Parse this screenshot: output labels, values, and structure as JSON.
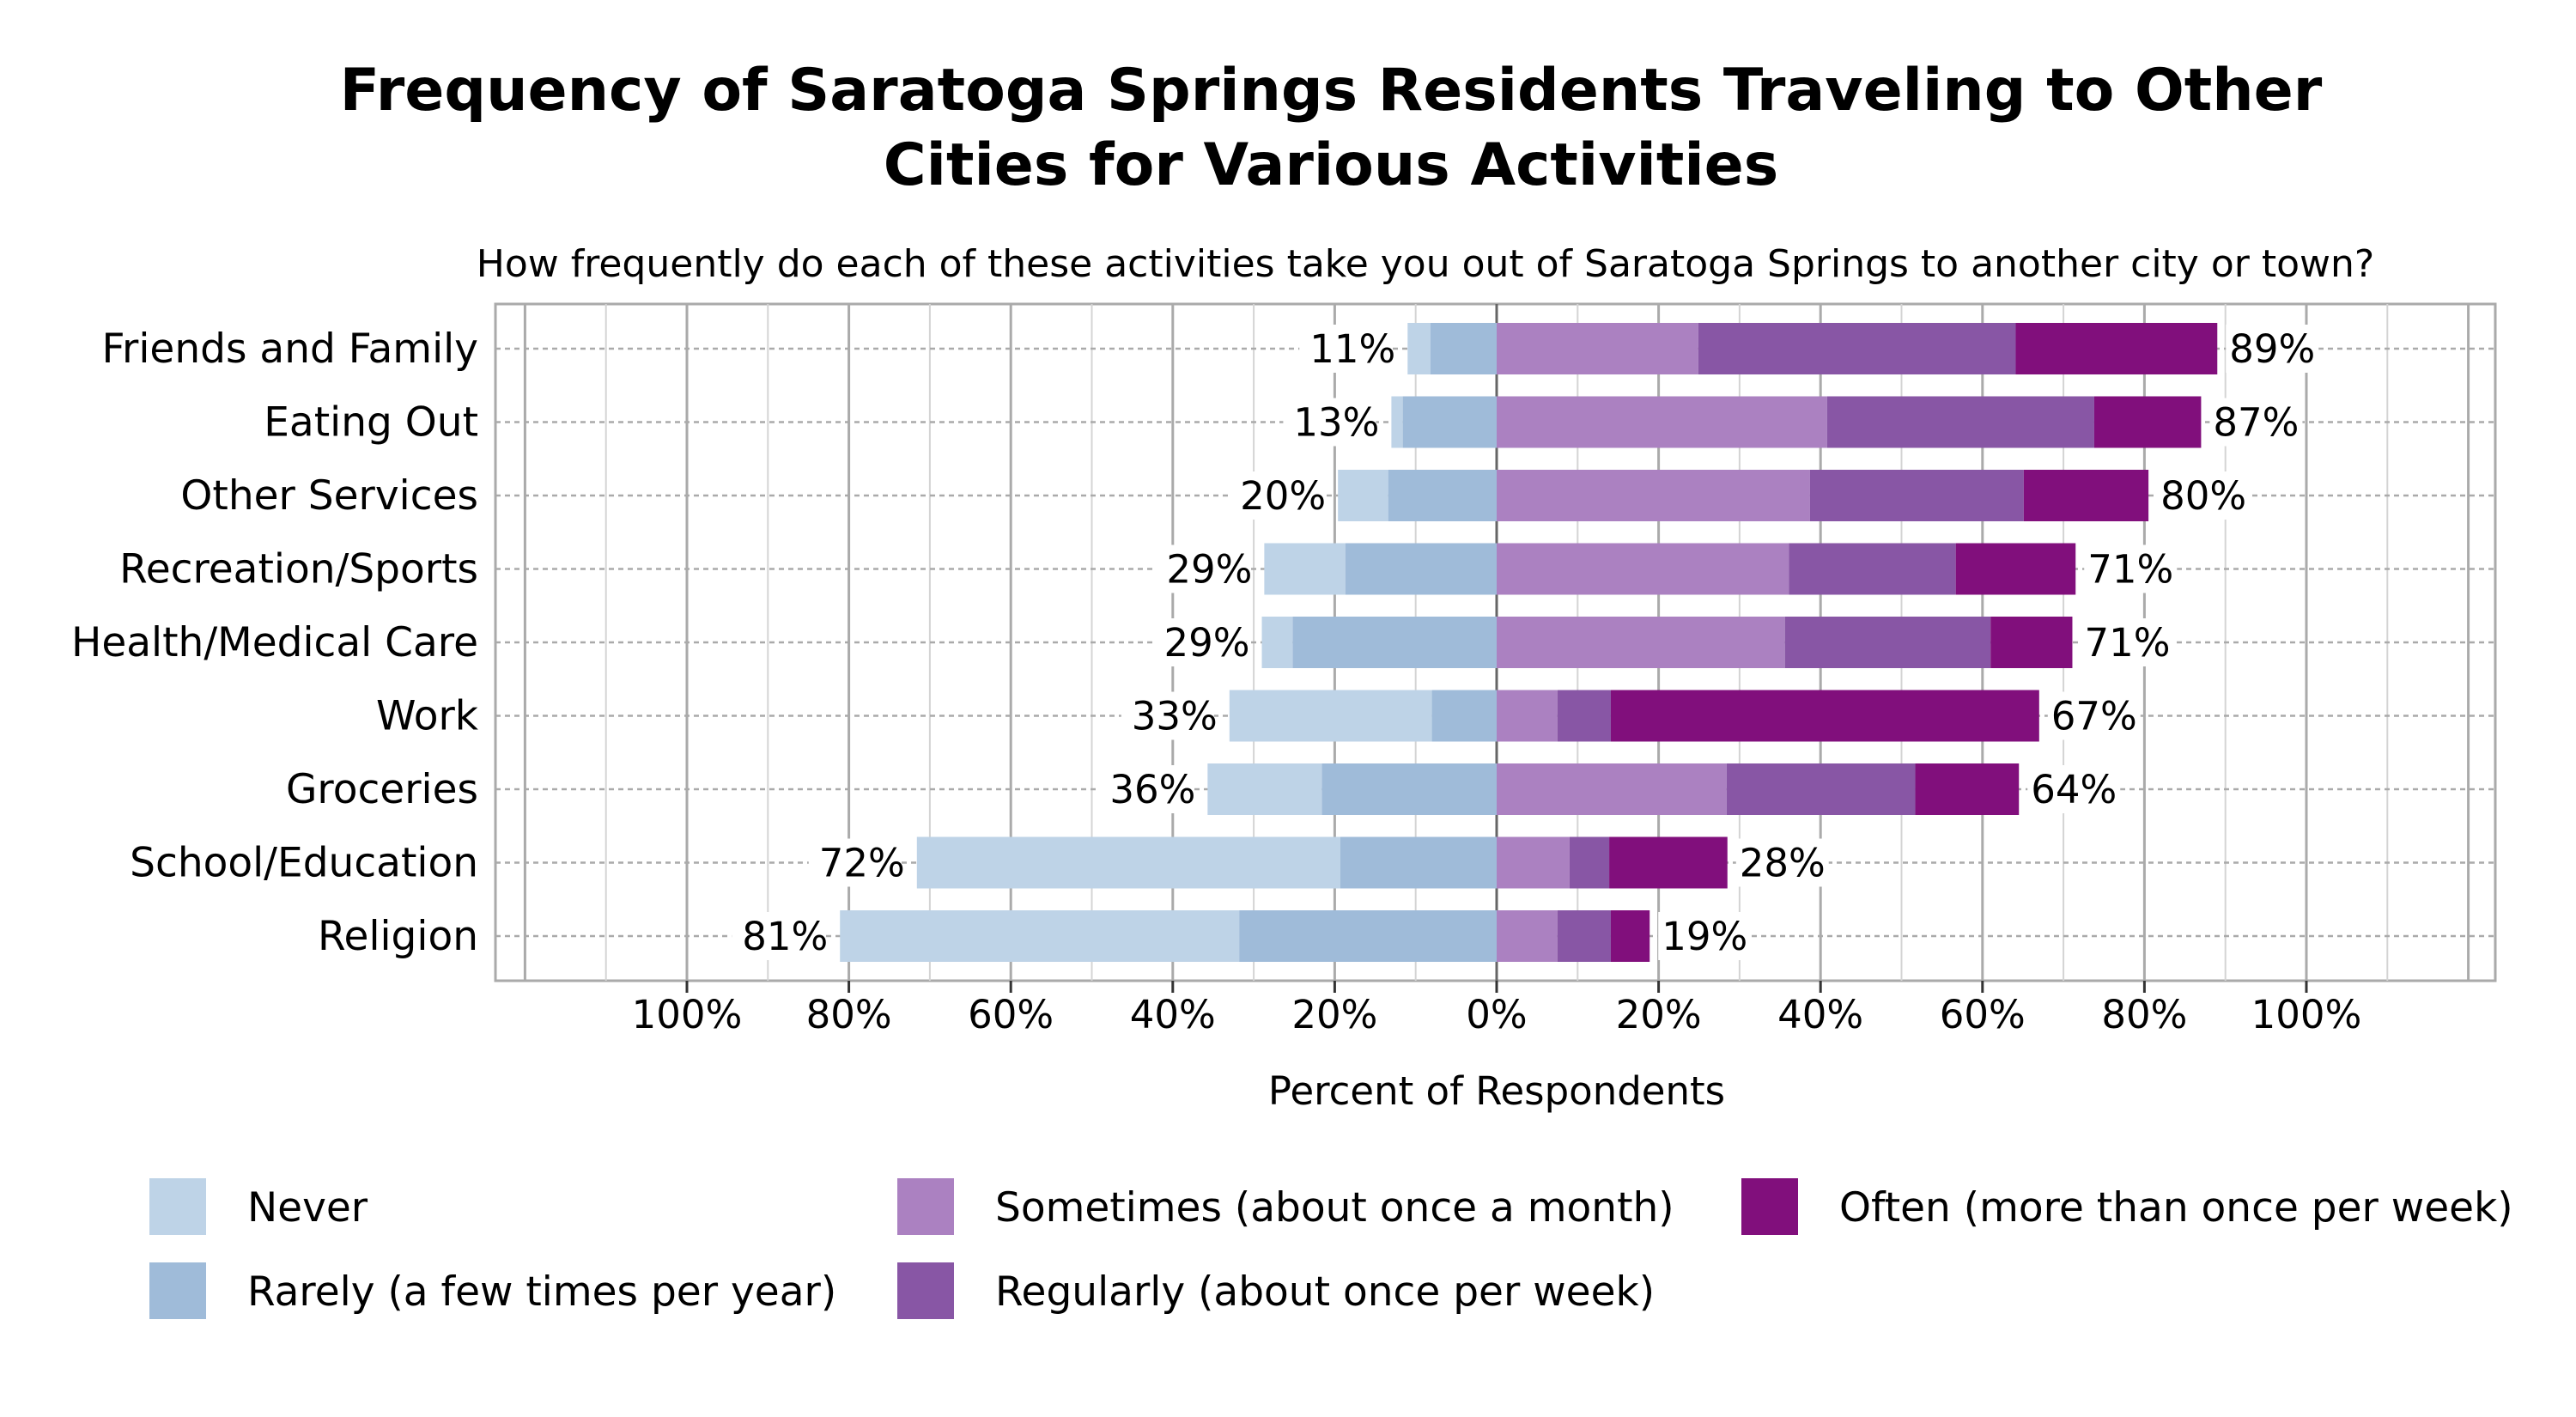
{
  "chart_data": {
    "type": "bar",
    "orientation": "horizontal",
    "stacked": "diverging",
    "title": "Frequency of Saratoga Springs Residents Traveling to Other Cities for Various Activities",
    "title_lines": [
      "Frequency of Saratoga Springs Residents Traveling to Other",
      "Cities for Various Activities"
    ],
    "subtitle": "How frequently do each of these activities take you out of Saratoga Springs to another city or town?",
    "xlabel": "Percent of Respondents",
    "ylabel": "",
    "xlim": [
      -100,
      100
    ],
    "xticks": [
      -100,
      -80,
      -60,
      -40,
      -20,
      0,
      20,
      40,
      60,
      80,
      100
    ],
    "xtick_labels": [
      "100%",
      "80%",
      "60%",
      "40%",
      "20%",
      "0%",
      "20%",
      "40%",
      "60%",
      "80%",
      "100%"
    ],
    "grid": true,
    "legend_position": "bottom",
    "categories": [
      "Friends and Family",
      "Eating Out",
      "Other Services",
      "Recreation/Sports",
      "Health/Medical Care",
      "Work",
      "Groceries",
      "School/Education",
      "Religion"
    ],
    "negative_totals_labels": [
      "11%",
      "13%",
      "20%",
      "29%",
      "29%",
      "33%",
      "36%",
      "72%",
      "81%"
    ],
    "positive_totals_labels": [
      "89%",
      "87%",
      "80%",
      "71%",
      "71%",
      "67%",
      "64%",
      "28%",
      "19%"
    ],
    "series": [
      {
        "name": "Never",
        "side": "negative",
        "color": "#bed3e7",
        "values": [
          2.8,
          1.4,
          6.2,
          10.0,
          3.8,
          25.0,
          14.1,
          52.3,
          49.3
        ]
      },
      {
        "name": "Rarely (a few times per year)",
        "side": "negative",
        "color": "#9fbbd9",
        "values": [
          8.2,
          11.6,
          13.4,
          18.7,
          25.2,
          8.0,
          21.6,
          19.3,
          31.8
        ]
      },
      {
        "name": "Sometimes (about once a month)",
        "side": "positive",
        "color": "#ab81c1",
        "values": [
          24.9,
          40.8,
          38.7,
          36.1,
          35.6,
          7.5,
          28.4,
          9.0,
          7.5
        ]
      },
      {
        "name": "Regularly (about once per week)",
        "side": "positive",
        "color": "#8856a5",
        "values": [
          39.2,
          33.0,
          26.4,
          20.6,
          25.4,
          6.6,
          23.3,
          4.9,
          6.6
        ]
      },
      {
        "name": "Often (more than once per week)",
        "side": "positive",
        "color": "#810f7c",
        "values": [
          24.9,
          13.2,
          15.4,
          14.8,
          10.1,
          52.9,
          12.8,
          14.6,
          4.8
        ]
      }
    ],
    "legend_order": [
      0,
      2,
      4,
      1,
      3
    ]
  }
}
